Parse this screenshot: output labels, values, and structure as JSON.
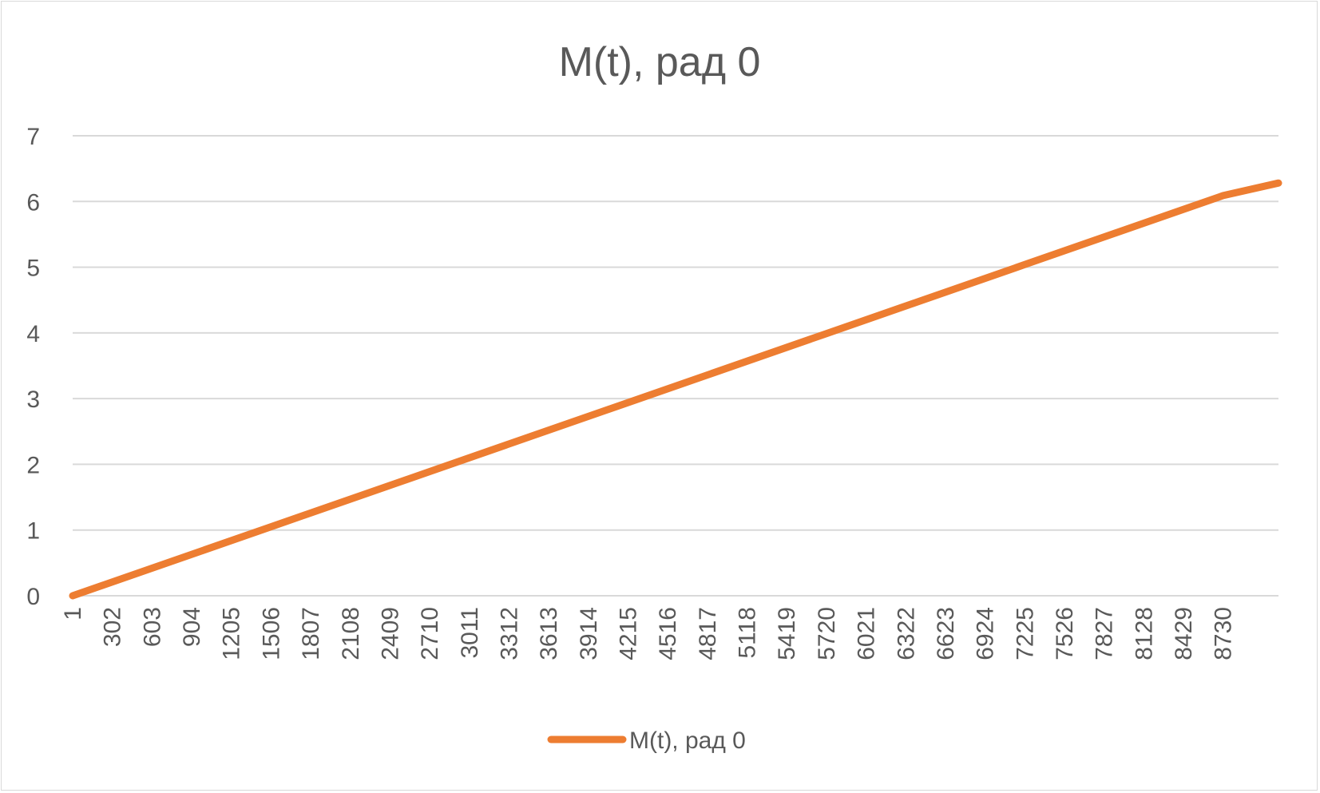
{
  "chart_data": {
    "type": "line",
    "title": "M(t), рад 0",
    "xlabel": "",
    "ylabel": "",
    "x_tick_labels": [
      "1",
      "302",
      "603",
      "904",
      "1205",
      "1506",
      "1807",
      "2108",
      "2409",
      "2710",
      "3011",
      "3312",
      "3613",
      "3914",
      "4215",
      "4516",
      "4817",
      "5118",
      "5419",
      "5720",
      "6021",
      "6322",
      "6623",
      "6924",
      "7225",
      "7526",
      "7827",
      "8128",
      "8429",
      "8730"
    ],
    "x_range": [
      1,
      9150
    ],
    "ylim": [
      0,
      7
    ],
    "y_ticks": [
      0,
      1,
      2,
      3,
      4,
      5,
      6,
      7
    ],
    "grid": true,
    "legend_position": "bottom",
    "series": [
      {
        "name": "M(t), рад 0",
        "color": "#ED7D31",
        "points": [
          [
            1,
            0.0
          ],
          [
            1506,
            1.05
          ],
          [
            2710,
            1.89
          ],
          [
            4215,
            2.94
          ],
          [
            5720,
            3.99
          ],
          [
            7225,
            5.04
          ],
          [
            8730,
            6.09
          ],
          [
            9150,
            6.28
          ]
        ]
      }
    ]
  }
}
